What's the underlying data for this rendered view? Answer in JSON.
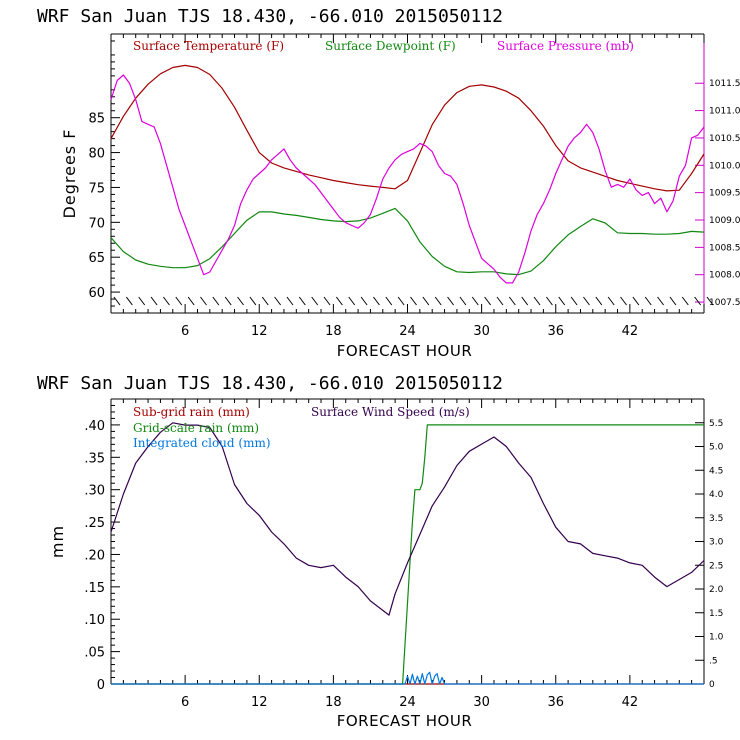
{
  "chart_data": [
    {
      "type": "line",
      "title": "WRF   San Juan TJS  18.430, -66.010  2015050112",
      "xlabel": "FORECAST HOUR",
      "ylabel": "Degrees F",
      "xlim": [
        0,
        48
      ],
      "xticks": [
        6,
        12,
        18,
        24,
        30,
        36,
        42
      ],
      "ylim": [
        57,
        97
      ],
      "yticks": [
        60,
        65,
        70,
        75,
        80,
        85
      ],
      "y2lim": [
        1007.3,
        1012.4
      ],
      "y2ticks": [
        1007.5,
        1008.0,
        1008.5,
        1009.0,
        1009.5,
        1010.0,
        1010.5,
        1011.0,
        1011.5
      ],
      "y2ticklabels": [
        "1007.5",
        "1008.0",
        "1008.5",
        "1009.0",
        "1009.5",
        "1010.0",
        "1010.5",
        "1011.0",
        "1011.5"
      ],
      "colors": {
        "temperature": "#a50000",
        "dewpoint": "#118811",
        "pressure": "#dd00dd",
        "axes": "#000000",
        "y2axis": "#cc00cc"
      },
      "series": [
        {
          "name": "Surface Temperature (F)",
          "color": "#a50000",
          "axis": "left",
          "x": [
            0,
            1,
            2,
            3,
            4,
            5,
            6,
            7,
            8,
            9,
            10,
            11,
            12,
            13,
            14,
            15,
            16,
            17,
            18,
            19,
            20,
            21,
            22,
            23,
            24,
            25,
            26,
            27,
            28,
            29,
            30,
            31,
            32,
            33,
            34,
            35,
            36,
            37,
            38,
            39,
            40,
            41,
            42,
            43,
            44,
            45,
            46,
            47,
            48
          ],
          "y": [
            82,
            85.2,
            87.8,
            89.8,
            91.3,
            92.2,
            92.5,
            92.2,
            91.2,
            89.2,
            86.5,
            83.2,
            80,
            78.5,
            77.8,
            77.3,
            76.8,
            76.4,
            76,
            75.7,
            75.4,
            75.2,
            75,
            74.8,
            76,
            80,
            84,
            86.8,
            88.6,
            89.5,
            89.7,
            89.4,
            88.8,
            87.8,
            86,
            83.8,
            81,
            78.8,
            77.8,
            77.2,
            76.6,
            76,
            75.6,
            75.2,
            74.8,
            74.5,
            74.6,
            77,
            79.8
          ]
        },
        {
          "name": "Surface Dewpoint (F)",
          "color": "#118811",
          "axis": "left",
          "x": [
            0,
            1,
            2,
            3,
            4,
            5,
            6,
            7,
            8,
            9,
            10,
            11,
            12,
            13,
            14,
            15,
            16,
            17,
            18,
            19,
            20,
            21,
            22,
            23,
            24,
            25,
            26,
            27,
            28,
            29,
            30,
            31,
            32,
            33,
            34,
            35,
            36,
            37,
            38,
            39,
            40,
            41,
            42,
            43,
            44,
            45,
            46,
            47,
            48
          ],
          "y": [
            67.8,
            65.8,
            64.6,
            64,
            63.7,
            63.5,
            63.5,
            63.8,
            64.8,
            66.5,
            68.4,
            70.3,
            71.5,
            71.5,
            71.2,
            71,
            70.7,
            70.4,
            70.2,
            70.1,
            70.2,
            70.6,
            71.3,
            72,
            70.2,
            67.2,
            65.1,
            63.7,
            62.9,
            62.8,
            62.9,
            62.9,
            62.6,
            62.5,
            63,
            64.5,
            66.5,
            68.2,
            69.4,
            70.5,
            69.9,
            68.5,
            68.4,
            68.4,
            68.3,
            68.3,
            68.4,
            68.7,
            68.6
          ]
        },
        {
          "name": "Surface Pressure (mb)",
          "color": "#dd00dd",
          "axis": "right",
          "x": [
            0,
            0.5,
            1,
            1.5,
            2,
            2.5,
            3,
            3.5,
            4,
            4.5,
            5,
            5.5,
            6,
            6.5,
            7,
            7.5,
            8,
            8.5,
            9,
            9.5,
            10,
            10.5,
            11,
            11.5,
            12,
            12.5,
            13,
            13.5,
            14,
            14.5,
            15,
            15.5,
            16,
            16.5,
            17,
            17.5,
            18,
            18.5,
            19,
            19.5,
            20,
            20.5,
            21,
            21.5,
            22,
            22.5,
            23,
            23.5,
            24,
            24.5,
            25,
            25.5,
            26,
            26.5,
            27,
            27.5,
            28,
            28.5,
            29,
            29.5,
            30,
            30.5,
            31,
            31.5,
            32,
            32.5,
            33,
            33.5,
            34,
            34.5,
            35,
            35.5,
            36,
            36.5,
            37,
            37.5,
            38,
            38.5,
            39,
            39.5,
            40,
            40.5,
            41,
            41.5,
            42,
            42.5,
            43,
            43.5,
            44,
            44.5,
            45,
            45.5,
            46,
            46.5,
            47,
            47.5,
            48
          ],
          "y": [
            1011.2,
            1011.55,
            1011.65,
            1011.5,
            1011.2,
            1010.8,
            1010.75,
            1010.7,
            1010.4,
            1010.0,
            1009.6,
            1009.2,
            1008.9,
            1008.6,
            1008.3,
            1008.0,
            1008.05,
            1008.25,
            1008.45,
            1008.65,
            1008.9,
            1009.3,
            1009.55,
            1009.75,
            1009.85,
            1009.95,
            1010.1,
            1010.2,
            1010.3,
            1010.1,
            1009.95,
            1009.85,
            1009.75,
            1009.65,
            1009.5,
            1009.35,
            1009.2,
            1009.05,
            1008.95,
            1008.9,
            1008.85,
            1008.95,
            1009.1,
            1009.4,
            1009.75,
            1009.95,
            1010.1,
            1010.2,
            1010.25,
            1010.3,
            1010.4,
            1010.35,
            1010.25,
            1010.0,
            1009.85,
            1009.8,
            1009.65,
            1009.3,
            1008.9,
            1008.6,
            1008.3,
            1008.2,
            1008.1,
            1007.95,
            1007.85,
            1007.85,
            1008.05,
            1008.4,
            1008.8,
            1009.1,
            1009.3,
            1009.55,
            1009.85,
            1010.1,
            1010.35,
            1010.5,
            1010.6,
            1010.75,
            1010.6,
            1010.3,
            1009.9,
            1009.6,
            1009.65,
            1009.6,
            1009.75,
            1009.55,
            1009.45,
            1009.5,
            1009.3,
            1009.4,
            1009.15,
            1009.35,
            1009.8,
            1010.0,
            1010.5,
            1010.55,
            1010.7
          ]
        }
      ],
      "legend_placement": "top-left"
    },
    {
      "type": "line",
      "title": "WRF   San Juan TJS  18.430, -66.010  2015050112",
      "xlabel": "FORECAST HOUR",
      "ylabel": "mm",
      "xlim": [
        0,
        48
      ],
      "xticks": [
        6,
        12,
        18,
        24,
        30,
        36,
        42
      ],
      "ylim": [
        0,
        0.44
      ],
      "yticks": [
        0,
        0.05,
        0.1,
        0.15,
        0.2,
        0.25,
        0.3,
        0.35,
        0.4
      ],
      "yticklabels": [
        "0",
        ".05",
        ".10",
        ".15",
        ".20",
        ".25",
        ".30",
        ".35",
        ".40"
      ],
      "y2lim": [
        0,
        6.0
      ],
      "y2ticks": [
        0,
        0.5,
        1.0,
        1.5,
        2.0,
        2.5,
        3.0,
        3.5,
        4.0,
        4.5,
        5.0,
        5.5
      ],
      "y2ticklabels": [
        "0",
        ".5",
        "1.0",
        "1.5",
        "2.0",
        "2.5",
        "3.0",
        "3.5",
        "4.0",
        "4.5",
        "5.0",
        "5.5"
      ],
      "colors": {
        "subgrid": "#a50000",
        "gridscale": "#118811",
        "cloud": "#0077dd",
        "wind": "#33004d",
        "axes": "#000000"
      },
      "series": [
        {
          "name": "Sub-grid rain (mm)",
          "color": "#a50000",
          "axis": "left",
          "x": [
            0,
            48
          ],
          "y": [
            0,
            0
          ]
        },
        {
          "name": "Grid-scale rain (mm)",
          "color": "#118811",
          "axis": "left",
          "x": [
            0,
            23.6,
            24.4,
            24.6,
            25.0,
            25.2,
            25.4,
            25.6,
            26.0,
            26.2,
            48
          ],
          "y": [
            0,
            0,
            0.25,
            0.3,
            0.3,
            0.31,
            0.35,
            0.4,
            0.4,
            0.4,
            0.4
          ]
        },
        {
          "name": "Integrated cloud (mm)",
          "color": "#0077dd",
          "axis": "left",
          "x": [
            0,
            23.8,
            24.0,
            24.2,
            24.4,
            24.6,
            24.8,
            25.0,
            25.2,
            25.4,
            25.6,
            25.8,
            26.0,
            26.2,
            26.4,
            26.6,
            26.8,
            27.0,
            48
          ],
          "y": [
            0,
            0,
            0.012,
            0.0,
            0.015,
            0.0,
            0.012,
            0.0,
            0.016,
            0.0,
            0.014,
            0.018,
            0.0,
            0.012,
            0.016,
            0.0,
            0.01,
            0.0,
            0
          ]
        },
        {
          "name": "Surface Wind Speed (m/s)",
          "color": "#33004d",
          "axis": "right",
          "x": [
            0,
            1,
            2,
            3,
            4,
            5,
            6,
            7,
            8,
            9,
            10,
            11,
            12,
            13,
            14,
            15,
            16,
            17,
            18,
            19,
            20,
            21,
            22,
            22.5,
            23,
            24,
            25,
            26,
            27,
            28,
            29,
            30,
            31,
            32,
            33,
            34,
            35,
            36,
            37,
            38,
            39,
            40,
            41,
            42,
            43,
            44,
            45,
            46,
            47,
            48
          ],
          "y": [
            3.2,
            4.0,
            4.65,
            5.0,
            5.3,
            5.5,
            5.45,
            5.45,
            5.4,
            5.0,
            4.2,
            3.8,
            3.55,
            3.2,
            2.95,
            2.65,
            2.5,
            2.45,
            2.5,
            2.25,
            2.05,
            1.75,
            1.55,
            1.45,
            1.9,
            2.55,
            3.15,
            3.75,
            4.15,
            4.6,
            4.9,
            5.05,
            5.2,
            5.0,
            4.65,
            4.35,
            3.8,
            3.3,
            3.0,
            2.95,
            2.75,
            2.7,
            2.65,
            2.55,
            2.5,
            2.25,
            2.05,
            2.2,
            2.35,
            2.6
          ]
        }
      ],
      "legend_placement": "top-left"
    }
  ]
}
